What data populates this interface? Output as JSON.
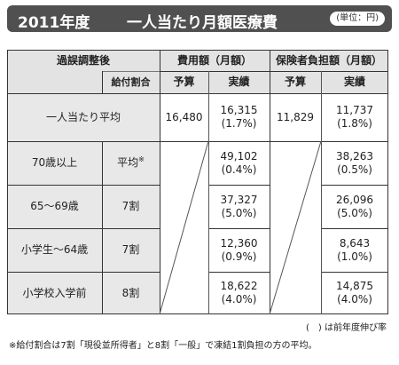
{
  "title": {
    "year": "2011年度",
    "main": "一人当たり月額医療費",
    "unit": "(単位：円)"
  },
  "table": {
    "corner_label": "過誤調整後",
    "ratio_label": "給付割合",
    "group_cost": "費用額（月額）",
    "group_insurer": "保険者負担額（月額）",
    "budget": "予算",
    "actual": "実績",
    "per_person": {
      "label": "一人当たり平均",
      "cost_budget": "16,480",
      "cost_actual": "16,315",
      "cost_actual_change": "(1.7%)",
      "ins_budget": "11,829",
      "ins_actual": "11,737",
      "ins_actual_change": "(1.8%)"
    },
    "rows": [
      {
        "label": "70歳以上",
        "ratio": "平均",
        "ratio_mark": "※",
        "cost_actual": "49,102",
        "cost_change": "(0.4%)",
        "ins_actual": "38,263",
        "ins_change": "(0.5%)"
      },
      {
        "label": "65〜69歳",
        "ratio": "7割",
        "cost_actual": "37,327",
        "cost_change": "(5.0%)",
        "ins_actual": "26,096",
        "ins_change": "(5.0%)"
      },
      {
        "label": "小学生〜64歳",
        "ratio": "7割",
        "cost_actual": "12,360",
        "cost_change": "(0.9%)",
        "ins_actual": "8,643",
        "ins_change": "(1.0%)"
      },
      {
        "label": "小学校入学前",
        "ratio": "8割",
        "cost_actual": "18,622",
        "cost_change": "(4.0%)",
        "ins_actual": "14,875",
        "ins_change": "(4.0%)"
      }
    ]
  },
  "notes": {
    "paren": "(　) は前年度伸び率",
    "footnote": "※給付割合は7割「現役並所得者」と8割「一般」で凍結1割負担の方の平均。"
  }
}
